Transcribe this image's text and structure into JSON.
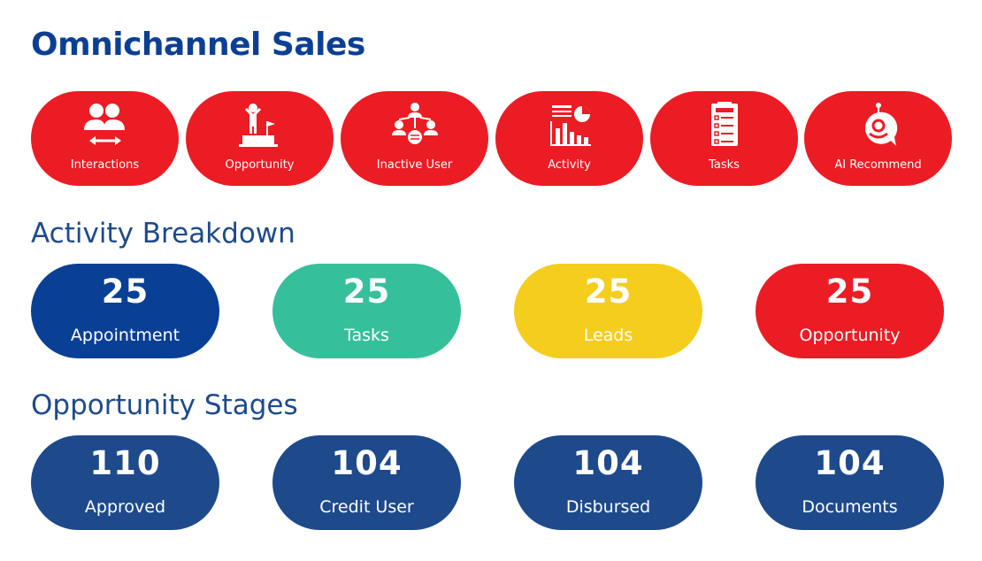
{
  "page_title": "Omnichannel Sales",
  "quick_actions": [
    {
      "label": "Interactions",
      "icon": "users-exchange-icon"
    },
    {
      "label": "Opportunity",
      "icon": "podium-winner-icon"
    },
    {
      "label": "Inactive User",
      "icon": "user-network-icon"
    },
    {
      "label": "Activity",
      "icon": "chart-report-icon"
    },
    {
      "label": "Tasks",
      "icon": "task-checklist-icon"
    },
    {
      "label": "AI Recommend",
      "icon": "robot-chat-icon"
    }
  ],
  "activity_breakdown": {
    "title": "Activity Breakdown",
    "cards": [
      {
        "value": "25",
        "label": "Appointment",
        "color": "#0a3f96"
      },
      {
        "value": "25",
        "label": "Tasks",
        "color": "#36bf9b"
      },
      {
        "value": "25",
        "label": "Leads",
        "color": "#f5cd1d"
      },
      {
        "value": "25",
        "label": "Opportunity",
        "color": "#ec1c24"
      }
    ]
  },
  "opportunity_stages": {
    "title": "Opportunity Stages",
    "cards": [
      {
        "value": "110",
        "label": "Approved",
        "color": "#1e4a8c"
      },
      {
        "value": "104",
        "label": "Credit User",
        "color": "#1e4a8c"
      },
      {
        "value": "104",
        "label": "Disbursed",
        "color": "#1e4a8c"
      },
      {
        "value": "104",
        "label": "Documents",
        "color": "#1e4a8c"
      }
    ]
  },
  "colors": {
    "brand_red": "#ec1c24",
    "brand_blue": "#0c3f94",
    "section_blue": "#1e4a8c"
  }
}
